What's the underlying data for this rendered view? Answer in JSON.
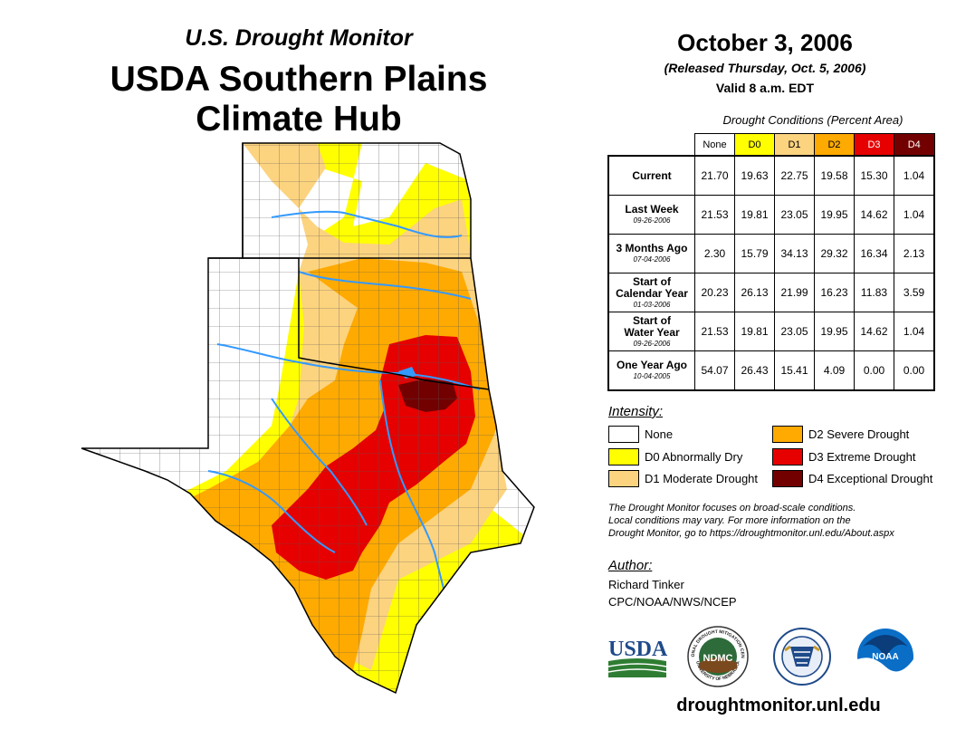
{
  "header": {
    "title_line1": "U.S. Drought Monitor",
    "title_line2a": "USDA Southern Plains",
    "title_line2b": "Climate Hub",
    "date": "October 3, 2006",
    "released": "(Released Thursday, Oct. 5, 2006)",
    "valid": "Valid 8 a.m. EDT"
  },
  "table": {
    "caption": "Drought Conditions (Percent Area)",
    "columns": [
      "None",
      "D0",
      "D1",
      "D2",
      "D3",
      "D4"
    ],
    "rows": [
      {
        "label_a": "Current",
        "label_b": "",
        "date": "",
        "values": [
          "21.70",
          "19.63",
          "22.75",
          "19.58",
          "15.30",
          "1.04"
        ]
      },
      {
        "label_a": "Last Week",
        "label_b": "",
        "date": "09-26-2006",
        "values": [
          "21.53",
          "19.81",
          "23.05",
          "19.95",
          "14.62",
          "1.04"
        ]
      },
      {
        "label_a": "3 Months Ago",
        "label_b": "",
        "date": "07-04-2006",
        "values": [
          "2.30",
          "15.79",
          "34.13",
          "29.32",
          "16.34",
          "2.13"
        ]
      },
      {
        "label_a": "Start of",
        "label_b": "Calendar Year",
        "date": "01-03-2006",
        "values": [
          "20.23",
          "26.13",
          "21.99",
          "16.23",
          "11.83",
          "3.59"
        ]
      },
      {
        "label_a": "Start of",
        "label_b": "Water Year",
        "date": "09-26-2006",
        "values": [
          "21.53",
          "19.81",
          "23.05",
          "19.95",
          "14.62",
          "1.04"
        ]
      },
      {
        "label_a": "One Year Ago",
        "label_b": "",
        "date": "10-04-2005",
        "values": [
          "54.07",
          "26.43",
          "15.41",
          "4.09",
          "0.00",
          "0.00"
        ]
      }
    ]
  },
  "legend": {
    "title": "Intensity:",
    "items": [
      {
        "label": "None",
        "color": "#ffffff"
      },
      {
        "label": "D0 Abnormally Dry",
        "color": "#ffff00"
      },
      {
        "label": "D1 Moderate Drought",
        "color": "#fcd37f"
      },
      {
        "label": "D2 Severe Drought",
        "color": "#ffaa00"
      },
      {
        "label": "D3 Extreme Drought",
        "color": "#e60000"
      },
      {
        "label": "D4 Exceptional Drought",
        "color": "#730000"
      }
    ]
  },
  "note": {
    "line1": "The Drought Monitor focuses on broad-scale conditions.",
    "line2": "Local conditions may vary. For more information on the",
    "line3": "Drought Monitor, go to https://droughtmonitor.unl.edu/About.aspx"
  },
  "author": {
    "title": "Author:",
    "name": "Richard Tinker",
    "org": "CPC/NOAA/NWS/NCEP"
  },
  "logos": {
    "usda": "USDA",
    "ndmc": "NDMC",
    "ndmc_ring_top": "NATIONAL DROUGHT MITIGATION CENTER",
    "ndmc_ring_bottom": "UNIVERSITY OF NEBRASKA",
    "noaa": "NOAA"
  },
  "footer": {
    "website": "droughtmonitor.unl.edu"
  },
  "colors": {
    "none": "#ffffff",
    "d0": "#ffff00",
    "d1": "#fcd37f",
    "d2": "#ffaa00",
    "d3": "#e60000",
    "d4": "#730000",
    "water": "#3399ff"
  }
}
